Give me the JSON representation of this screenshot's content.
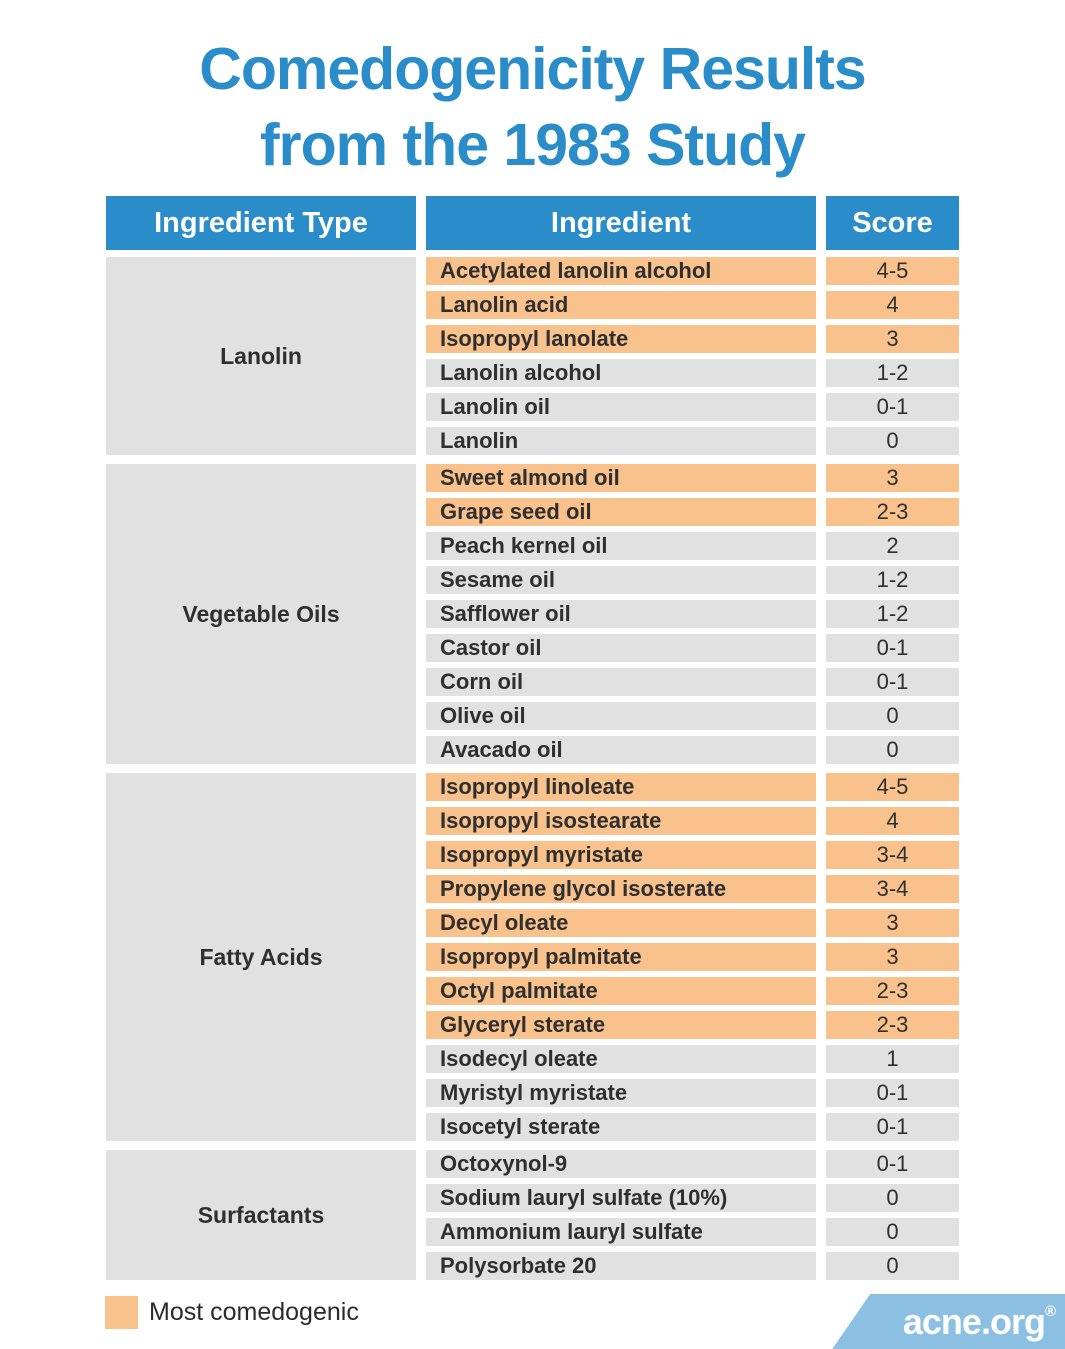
{
  "title": {
    "line1": "Comedogenicity Results",
    "line2": "from the 1983 Study"
  },
  "table": {
    "headers": [
      "Ingredient Type",
      "Ingredient",
      "Score"
    ],
    "sections": [
      {
        "type": "Lanolin",
        "rows": [
          {
            "ingredient": "Acetylated lanolin alcohol",
            "score": "4-5",
            "highlight": true
          },
          {
            "ingredient": "Lanolin acid",
            "score": "4",
            "highlight": true
          },
          {
            "ingredient": "Isopropyl lanolate",
            "score": "3",
            "highlight": true
          },
          {
            "ingredient": "Lanolin alcohol",
            "score": "1-2",
            "highlight": false
          },
          {
            "ingredient": "Lanolin oil",
            "score": "0-1",
            "highlight": false
          },
          {
            "ingredient": "Lanolin",
            "score": "0",
            "highlight": false
          }
        ]
      },
      {
        "type": "Vegetable Oils",
        "rows": [
          {
            "ingredient": "Sweet almond oil",
            "score": "3",
            "highlight": true
          },
          {
            "ingredient": "Grape seed oil",
            "score": "2-3",
            "highlight": true
          },
          {
            "ingredient": "Peach kernel oil",
            "score": "2",
            "highlight": false
          },
          {
            "ingredient": "Sesame oil",
            "score": "1-2",
            "highlight": false
          },
          {
            "ingredient": "Safflower oil",
            "score": "1-2",
            "highlight": false
          },
          {
            "ingredient": "Castor oil",
            "score": "0-1",
            "highlight": false
          },
          {
            "ingredient": "Corn oil",
            "score": "0-1",
            "highlight": false
          },
          {
            "ingredient": "Olive oil",
            "score": "0",
            "highlight": false
          },
          {
            "ingredient": "Avacado oil",
            "score": "0",
            "highlight": false
          }
        ]
      },
      {
        "type": "Fatty Acids",
        "rows": [
          {
            "ingredient": "Isopropyl linoleate",
            "score": "4-5",
            "highlight": true
          },
          {
            "ingredient": "Isopropyl isostearate",
            "score": "4",
            "highlight": true
          },
          {
            "ingredient": "Isopropyl myristate",
            "score": "3-4",
            "highlight": true
          },
          {
            "ingredient": "Propylene glycol isosterate",
            "score": "3-4",
            "highlight": true
          },
          {
            "ingredient": "Decyl oleate",
            "score": "3",
            "highlight": true
          },
          {
            "ingredient": "Isopropyl palmitate",
            "score": "3",
            "highlight": true
          },
          {
            "ingredient": "Octyl palmitate",
            "score": "2-3",
            "highlight": true
          },
          {
            "ingredient": "Glyceryl sterate",
            "score": "2-3",
            "highlight": true
          },
          {
            "ingredient": "Isodecyl oleate",
            "score": "1",
            "highlight": false
          },
          {
            "ingredient": "Myristyl myristate",
            "score": "0-1",
            "highlight": false
          },
          {
            "ingredient": "Isocetyl sterate",
            "score": "0-1",
            "highlight": false
          }
        ]
      },
      {
        "type": "Surfactants",
        "rows": [
          {
            "ingredient": "Octoxynol-9",
            "score": "0-1",
            "highlight": false
          },
          {
            "ingredient": "Sodium lauryl sulfate (10%)",
            "score": "0",
            "highlight": false
          },
          {
            "ingredient": "Ammonium lauryl sulfate",
            "score": "0",
            "highlight": false
          },
          {
            "ingredient": "Polysorbate 20",
            "score": "0",
            "highlight": false
          }
        ]
      }
    ]
  },
  "legend": {
    "label": "Most comedogenic",
    "swatch_color": "#f9c18b"
  },
  "logo": {
    "text": "acne.org",
    "registered_mark": "®"
  },
  "colors": {
    "title_blue": "#2a8cc8",
    "header_blue": "#2a8cc8",
    "highlight_orange": "#f9c18b",
    "row_gray": "#e1e1e1",
    "logo_blue": "#8bc0e2",
    "text_dark": "#2f2f2f"
  },
  "chart_data": {
    "type": "table",
    "title": "Comedogenicity Results from the 1983 Study",
    "columns": [
      "Ingredient Type",
      "Ingredient",
      "Score"
    ],
    "legend": [
      {
        "label": "Most comedogenic",
        "color": "#f9c18b"
      }
    ],
    "rows": [
      {
        "ingredient_type": "Lanolin",
        "ingredient": "Acetylated lanolin alcohol",
        "score": "4-5",
        "most_comedogenic": true
      },
      {
        "ingredient_type": "Lanolin",
        "ingredient": "Lanolin acid",
        "score": "4",
        "most_comedogenic": true
      },
      {
        "ingredient_type": "Lanolin",
        "ingredient": "Isopropyl lanolate",
        "score": "3",
        "most_comedogenic": true
      },
      {
        "ingredient_type": "Lanolin",
        "ingredient": "Lanolin alcohol",
        "score": "1-2",
        "most_comedogenic": false
      },
      {
        "ingredient_type": "Lanolin",
        "ingredient": "Lanolin oil",
        "score": "0-1",
        "most_comedogenic": false
      },
      {
        "ingredient_type": "Lanolin",
        "ingredient": "Lanolin",
        "score": "0",
        "most_comedogenic": false
      },
      {
        "ingredient_type": "Vegetable Oils",
        "ingredient": "Sweet almond oil",
        "score": "3",
        "most_comedogenic": true
      },
      {
        "ingredient_type": "Vegetable Oils",
        "ingredient": "Grape seed oil",
        "score": "2-3",
        "most_comedogenic": true
      },
      {
        "ingredient_type": "Vegetable Oils",
        "ingredient": "Peach kernel oil",
        "score": "2",
        "most_comedogenic": false
      },
      {
        "ingredient_type": "Vegetable Oils",
        "ingredient": "Sesame oil",
        "score": "1-2",
        "most_comedogenic": false
      },
      {
        "ingredient_type": "Vegetable Oils",
        "ingredient": "Safflower oil",
        "score": "1-2",
        "most_comedogenic": false
      },
      {
        "ingredient_type": "Vegetable Oils",
        "ingredient": "Castor oil",
        "score": "0-1",
        "most_comedogenic": false
      },
      {
        "ingredient_type": "Vegetable Oils",
        "ingredient": "Corn oil",
        "score": "0-1",
        "most_comedogenic": false
      },
      {
        "ingredient_type": "Vegetable Oils",
        "ingredient": "Olive oil",
        "score": "0",
        "most_comedogenic": false
      },
      {
        "ingredient_type": "Vegetable Oils",
        "ingredient": "Avacado oil",
        "score": "0",
        "most_comedogenic": false
      },
      {
        "ingredient_type": "Fatty Acids",
        "ingredient": "Isopropyl linoleate",
        "score": "4-5",
        "most_comedogenic": true
      },
      {
        "ingredient_type": "Fatty Acids",
        "ingredient": "Isopropyl isostearate",
        "score": "4",
        "most_comedogenic": true
      },
      {
        "ingredient_type": "Fatty Acids",
        "ingredient": "Isopropyl myristate",
        "score": "3-4",
        "most_comedogenic": true
      },
      {
        "ingredient_type": "Fatty Acids",
        "ingredient": "Propylene glycol isosterate",
        "score": "3-4",
        "most_comedogenic": true
      },
      {
        "ingredient_type": "Fatty Acids",
        "ingredient": "Decyl oleate",
        "score": "3",
        "most_comedogenic": true
      },
      {
        "ingredient_type": "Fatty Acids",
        "ingredient": "Isopropyl palmitate",
        "score": "3",
        "most_comedogenic": true
      },
      {
        "ingredient_type": "Fatty Acids",
        "ingredient": "Octyl palmitate",
        "score": "2-3",
        "most_comedogenic": true
      },
      {
        "ingredient_type": "Fatty Acids",
        "ingredient": "Glyceryl sterate",
        "score": "2-3",
        "most_comedogenic": true
      },
      {
        "ingredient_type": "Fatty Acids",
        "ingredient": "Isodecyl oleate",
        "score": "1",
        "most_comedogenic": false
      },
      {
        "ingredient_type": "Fatty Acids",
        "ingredient": "Myristyl myristate",
        "score": "0-1",
        "most_comedogenic": false
      },
      {
        "ingredient_type": "Fatty Acids",
        "ingredient": "Isocetyl sterate",
        "score": "0-1",
        "most_comedogenic": false
      },
      {
        "ingredient_type": "Surfactants",
        "ingredient": "Octoxynol-9",
        "score": "0-1",
        "most_comedogenic": false
      },
      {
        "ingredient_type": "Surfactants",
        "ingredient": "Sodium lauryl sulfate (10%)",
        "score": "0",
        "most_comedogenic": false
      },
      {
        "ingredient_type": "Surfactants",
        "ingredient": "Ammonium lauryl sulfate",
        "score": "0",
        "most_comedogenic": false
      },
      {
        "ingredient_type": "Surfactants",
        "ingredient": "Polysorbate 20",
        "score": "0",
        "most_comedogenic": false
      }
    ]
  }
}
